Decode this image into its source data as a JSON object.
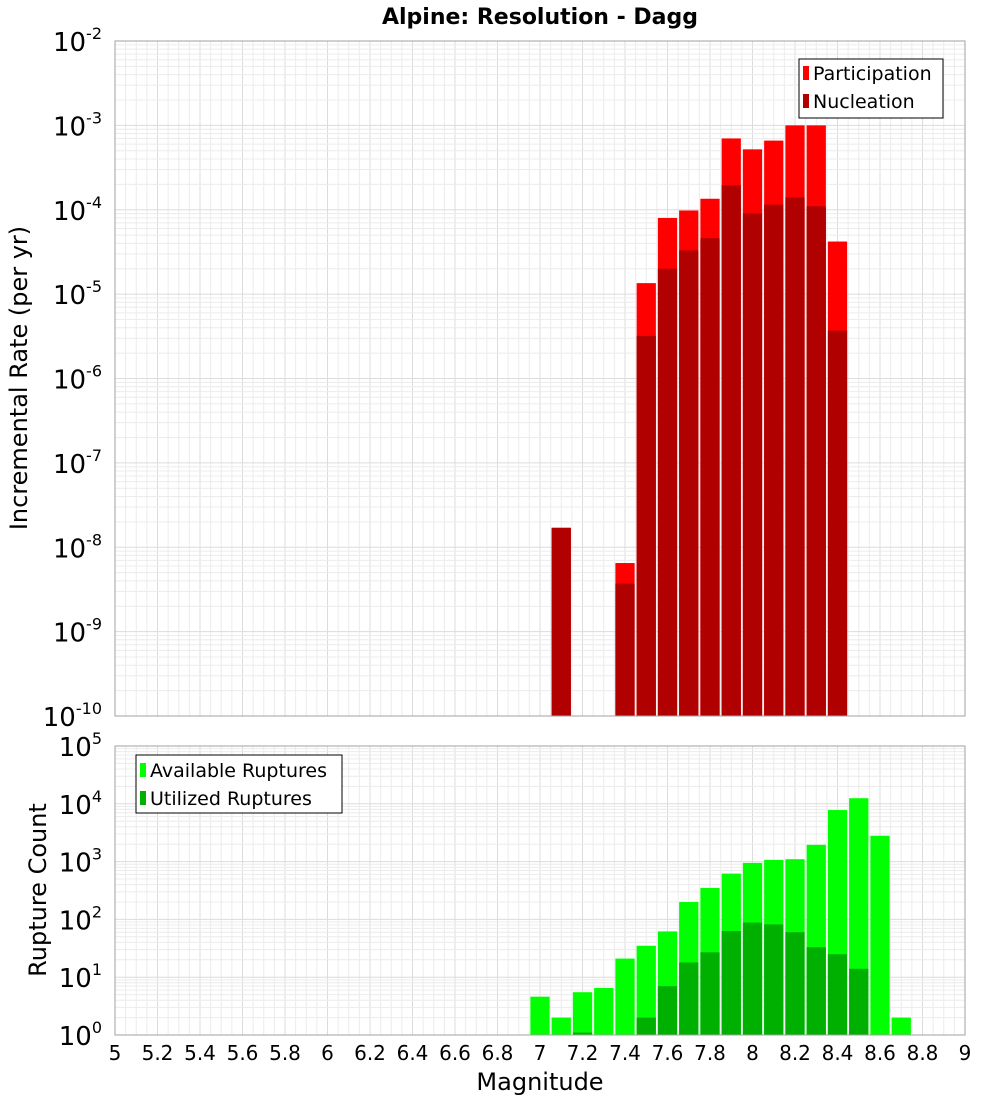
{
  "chart_data": [
    {
      "type": "bar",
      "title": "Alpine: Resolution - Dagg",
      "xlabel": "",
      "ylabel": "Incremental Rate (per yr)",
      "yscale": "log",
      "ylim": [
        1e-10,
        0.01
      ],
      "xlim": [
        5.0,
        9.0
      ],
      "grid": true,
      "legend_placement": "top-right",
      "bar_width": 0.1,
      "x": [
        7.1,
        7.2,
        7.3,
        7.4,
        7.5,
        7.6,
        7.7,
        7.8,
        7.9,
        8.0,
        8.1,
        8.2,
        8.3,
        8.4,
        8.5
      ],
      "series": [
        {
          "name": "Participation",
          "color": "#ff0000",
          "values": [
            1.7e-08,
            null,
            null,
            6.5e-09,
            1.35e-05,
            8e-05,
            9.8e-05,
            0.000135,
            0.0007,
            0.00052,
            0.00066,
            0.001,
            0.001,
            4.2e-05,
            null
          ]
        },
        {
          "name": "Nucleation",
          "color": "#b00000",
          "values": [
            1.7e-08,
            null,
            null,
            3.7e-09,
            3.2e-06,
            2e-05,
            3.3e-05,
            4.6e-05,
            0.000195,
            9e-05,
            0.000115,
            0.00014,
            0.00011,
            3.7e-06,
            null
          ]
        }
      ]
    },
    {
      "type": "bar",
      "xlabel": "Magnitude",
      "ylabel": "Rupture Count",
      "yscale": "log",
      "ylim": [
        1,
        100000
      ],
      "xlim": [
        5.0,
        9.0
      ],
      "grid": true,
      "legend_placement": "top-left",
      "bar_width": 0.1,
      "x": [
        7.0,
        7.1,
        7.2,
        7.3,
        7.4,
        7.5,
        7.6,
        7.7,
        7.8,
        7.9,
        8.0,
        8.1,
        8.2,
        8.3,
        8.4,
        8.5,
        8.6,
        8.7
      ],
      "series": [
        {
          "name": "Available Ruptures",
          "color": "#00ff00",
          "values": [
            4.6,
            2,
            5.5,
            6.5,
            21,
            35,
            62,
            200,
            350,
            620,
            950,
            1070,
            1100,
            1950,
            7800,
            12500,
            2800,
            2
          ]
        },
        {
          "name": "Utilized Ruptures",
          "color": "#00b000",
          "values": [
            null,
            null,
            1.1,
            null,
            null,
            2,
            7,
            18,
            27,
            63,
            88,
            82,
            60,
            33,
            25,
            14,
            null,
            null
          ]
        }
      ]
    }
  ],
  "x_ticks": [
    "5",
    "5.2",
    "5.4",
    "5.6",
    "5.8",
    "6",
    "6.2",
    "6.4",
    "6.6",
    "6.8",
    "7",
    "7.2",
    "7.4",
    "7.6",
    "7.8",
    "8",
    "8.2",
    "8.4",
    "8.6",
    "8.8",
    "9"
  ],
  "top_yticks": [
    {
      "base": "10",
      "exp": "-2"
    },
    {
      "base": "10",
      "exp": "-3"
    },
    {
      "base": "10",
      "exp": "-4"
    },
    {
      "base": "10",
      "exp": "-5"
    },
    {
      "base": "10",
      "exp": "-6"
    },
    {
      "base": "10",
      "exp": "-7"
    },
    {
      "base": "10",
      "exp": "-8"
    },
    {
      "base": "10",
      "exp": "-9"
    },
    {
      "base": "10",
      "exp": "-10"
    }
  ],
  "bottom_yticks": [
    {
      "base": "10",
      "exp": "5"
    },
    {
      "base": "10",
      "exp": "4"
    },
    {
      "base": "10",
      "exp": "3"
    },
    {
      "base": "10",
      "exp": "2"
    },
    {
      "base": "10",
      "exp": "1"
    },
    {
      "base": "10",
      "exp": "0"
    }
  ]
}
